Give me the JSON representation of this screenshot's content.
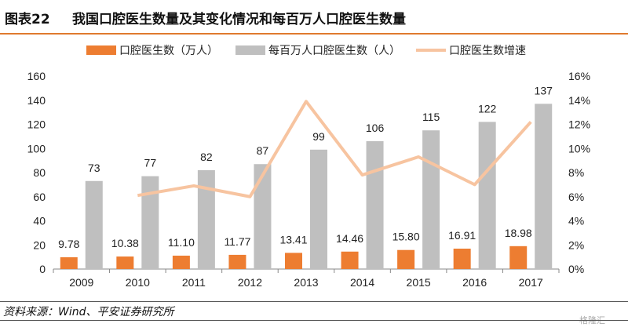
{
  "header": {
    "figure_label": "图表22",
    "title": "我国口腔医生数量及其变化情况和每百万人口腔医生数量"
  },
  "footer": {
    "source": "资料来源：Wind、平安证券研究所",
    "watermark": "格隆汇"
  },
  "colors": {
    "bar_primary": "#ed7d31",
    "bar_secondary": "#bfbfbf",
    "line": "#f7c4a0",
    "accent_rule": "#e07a2e"
  },
  "chart_data": {
    "type": "bar",
    "title": "我国口腔医生数量及其变化情况和每百万人口腔医生数量",
    "categories": [
      "2009",
      "2010",
      "2011",
      "2012",
      "2013",
      "2014",
      "2015",
      "2016",
      "2017"
    ],
    "series": [
      {
        "name": "口腔医生数（万人）",
        "kind": "bar",
        "axis": "left",
        "values": [
          9.78,
          10.38,
          11.1,
          11.77,
          13.41,
          14.46,
          15.8,
          16.91,
          18.98
        ],
        "labels": [
          "9.78",
          "10.38",
          "11.10",
          "11.77",
          "13.41",
          "14.46",
          "15.80",
          "16.91",
          "18.98"
        ]
      },
      {
        "name": "每百万人口腔医生数（人）",
        "kind": "bar",
        "axis": "left",
        "values": [
          73,
          77,
          82,
          87,
          99,
          106,
          115,
          122,
          137
        ],
        "labels": [
          "73",
          "77",
          "82",
          "87",
          "99",
          "106",
          "115",
          "122",
          "137"
        ]
      },
      {
        "name": "口腔医生数增速",
        "kind": "line",
        "axis": "right",
        "values": [
          null,
          6.1,
          6.9,
          6.0,
          13.9,
          7.8,
          9.3,
          7.0,
          12.2
        ]
      }
    ],
    "y_left": {
      "min": 0,
      "max": 160,
      "step": 20,
      "ticks": [
        "0",
        "20",
        "40",
        "60",
        "80",
        "100",
        "120",
        "140",
        "160"
      ]
    },
    "y_right": {
      "min": 0,
      "max": 16,
      "step": 2,
      "ticks": [
        "0%",
        "2%",
        "4%",
        "6%",
        "8%",
        "10%",
        "12%",
        "14%",
        "16%"
      ]
    },
    "legend_position": "top",
    "grid": false
  }
}
